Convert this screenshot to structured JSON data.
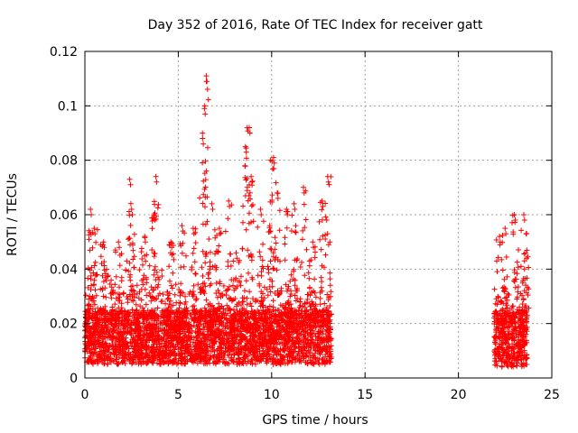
{
  "chart_data": {
    "type": "scatter",
    "title": "Day 352 of 2016, Rate Of TEC Index for receiver gatt",
    "xlabel": "GPS time / hours",
    "ylabel": "ROTI / TECUs",
    "xlim": [
      0,
      25
    ],
    "ylim": [
      0,
      0.12
    ],
    "xticks": [
      0,
      5,
      10,
      15,
      20,
      25
    ],
    "yticks": [
      0,
      0.02,
      0.04,
      0.06,
      0.08,
      0.1,
      0.12
    ],
    "xtick_labels": [
      "0",
      "5",
      "10",
      "15",
      "20",
      "25"
    ],
    "ytick_labels": [
      "0",
      "0.02",
      "0.04",
      "0.06",
      "0.08",
      "0.1",
      "0.12"
    ],
    "grid": true,
    "marker": "+",
    "marker_color": "#ff0000",
    "series": [
      {
        "name": "ROTI",
        "segments": [
          {
            "x_range": [
              0.0,
              13.2
            ],
            "baseline_range": [
              0.005,
              0.025
            ]
          },
          {
            "x_range": [
              21.9,
              23.7
            ],
            "baseline_range": [
              0.004,
              0.025
            ]
          }
        ],
        "peaks": [
          {
            "x": 0.3,
            "y": 0.062
          },
          {
            "x": 0.5,
            "y": 0.055
          },
          {
            "x": 1.0,
            "y": 0.05
          },
          {
            "x": 1.8,
            "y": 0.05
          },
          {
            "x": 2.4,
            "y": 0.073
          },
          {
            "x": 2.5,
            "y": 0.062
          },
          {
            "x": 3.2,
            "y": 0.052
          },
          {
            "x": 3.7,
            "y": 0.06
          },
          {
            "x": 3.8,
            "y": 0.074
          },
          {
            "x": 4.6,
            "y": 0.05
          },
          {
            "x": 5.2,
            "y": 0.056
          },
          {
            "x": 5.8,
            "y": 0.055
          },
          {
            "x": 6.3,
            "y": 0.088
          },
          {
            "x": 6.4,
            "y": 0.099
          },
          {
            "x": 6.5,
            "y": 0.111
          },
          {
            "x": 6.8,
            "y": 0.064
          },
          {
            "x": 7.2,
            "y": 0.055
          },
          {
            "x": 7.7,
            "y": 0.065
          },
          {
            "x": 8.1,
            "y": 0.046
          },
          {
            "x": 8.6,
            "y": 0.085
          },
          {
            "x": 8.8,
            "y": 0.092
          },
          {
            "x": 8.9,
            "y": 0.074
          },
          {
            "x": 9.4,
            "y": 0.062
          },
          {
            "x": 9.9,
            "y": 0.056
          },
          {
            "x": 10.1,
            "y": 0.081
          },
          {
            "x": 10.3,
            "y": 0.068
          },
          {
            "x": 10.8,
            "y": 0.062
          },
          {
            "x": 11.2,
            "y": 0.064
          },
          {
            "x": 11.7,
            "y": 0.07
          },
          {
            "x": 12.2,
            "y": 0.05
          },
          {
            "x": 12.7,
            "y": 0.065
          },
          {
            "x": 13.0,
            "y": 0.074
          },
          {
            "x": 22.2,
            "y": 0.052
          },
          {
            "x": 22.5,
            "y": 0.055
          },
          {
            "x": 23.0,
            "y": 0.06
          },
          {
            "x": 23.5,
            "y": 0.06
          },
          {
            "x": 23.6,
            "y": 0.046
          }
        ]
      }
    ]
  }
}
